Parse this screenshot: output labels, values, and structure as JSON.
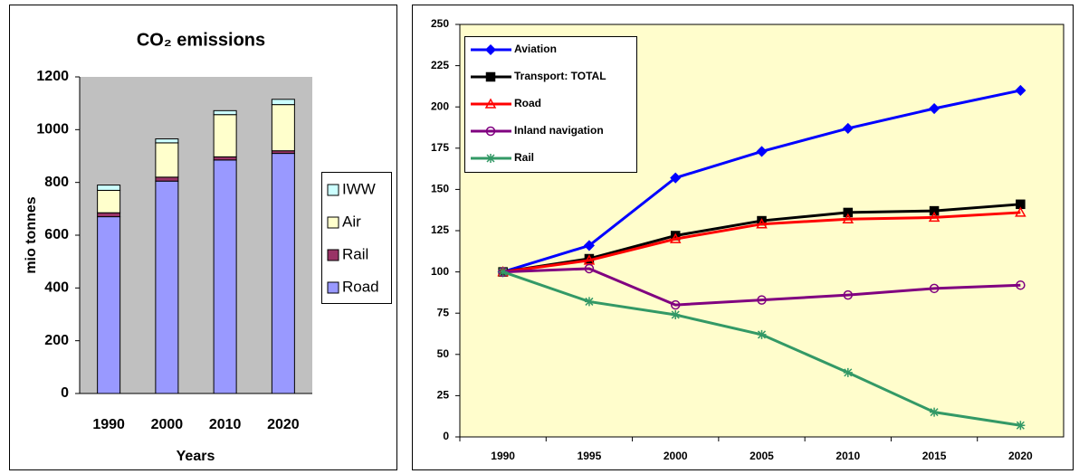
{
  "chart_data": [
    {
      "type": "stacked_bar",
      "title": "CO₂ emissions",
      "y_label": "mio tonnes",
      "x_label": "Years",
      "categories": [
        "1990",
        "2000",
        "2010",
        "2020"
      ],
      "series": [
        {
          "name": "Road",
          "color": "#9999ff",
          "values": [
            670,
            805,
            885,
            910
          ]
        },
        {
          "name": "Rail",
          "color": "#993366",
          "values": [
            15,
            15,
            12,
            10
          ]
        },
        {
          "name": "Air",
          "color": "#ffffcc",
          "values": [
            85,
            130,
            160,
            175
          ]
        },
        {
          "name": "IWW",
          "color": "#ccffff",
          "values": [
            20,
            15,
            15,
            20
          ]
        }
      ],
      "ylim": [
        0,
        1200
      ],
      "yticks": [
        0,
        200,
        400,
        600,
        800,
        1000,
        1200
      ],
      "grid": false,
      "plot_background": "#c0c0c0",
      "legend": "right"
    },
    {
      "type": "line",
      "categories": [
        "1990",
        "1995",
        "2000",
        "2005",
        "2010",
        "2015",
        "2020"
      ],
      "series": [
        {
          "name": "Aviation",
          "color": "#0000ff",
          "marker": "diamond",
          "values": [
            100,
            116,
            157,
            173,
            187,
            199,
            210
          ]
        },
        {
          "name": "Transport: TOTAL",
          "color": "#000000",
          "marker": "square",
          "values": [
            100,
            108,
            122,
            131,
            136,
            137,
            141
          ]
        },
        {
          "name": "Road",
          "color": "#ff0000",
          "marker": "triangle",
          "values": [
            100,
            107,
            120,
            129,
            132,
            133,
            136
          ]
        },
        {
          "name": "Inland navigation",
          "color": "#800080",
          "marker": "circle",
          "values": [
            100,
            102,
            80,
            83,
            86,
            90,
            92
          ]
        },
        {
          "name": "Rail",
          "color": "#339966",
          "marker": "star",
          "values": [
            100,
            82,
            74,
            62,
            39,
            15,
            7
          ]
        }
      ],
      "ylim": [
        0,
        250
      ],
      "yticks": [
        0,
        25,
        50,
        75,
        100,
        125,
        150,
        175,
        200,
        225,
        250
      ],
      "grid": false,
      "plot_background": "#fffdcc",
      "legend": "upper left"
    }
  ]
}
